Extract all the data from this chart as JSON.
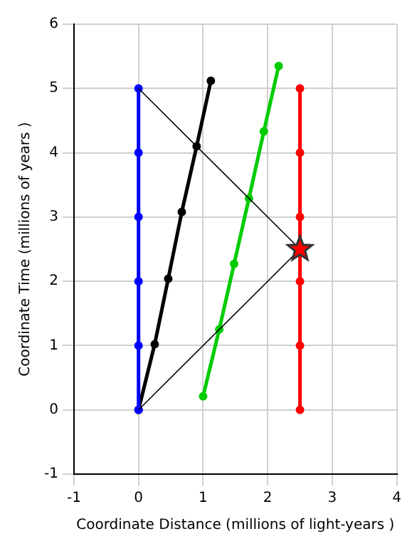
{
  "chart_data": {
    "type": "line",
    "xlabel": "Coordinate Distance (millions of light-years )",
    "ylabel": "Coordinate Time (millions of years )",
    "xlim": [
      -1,
      4
    ],
    "ylim": [
      -1,
      6
    ],
    "xticks": [
      -1,
      0,
      1,
      2,
      3,
      4
    ],
    "yticks": [
      -1,
      0,
      1,
      2,
      3,
      4,
      5,
      6
    ],
    "grid": true,
    "legend": false,
    "marker": "circle",
    "series": [
      {
        "color": "#000000",
        "marker": "none",
        "x": [
          0,
          2.5,
          0
        ],
        "values": [
          5,
          2.5,
          0
        ]
      },
      {
        "color": "#0000ff",
        "x": [
          0,
          0,
          0,
          0,
          0,
          0
        ],
        "values": [
          0,
          1,
          2,
          3,
          4,
          5
        ]
      },
      {
        "color": "#000000",
        "x": [
          0,
          0.25,
          0.46,
          0.67,
          0.9,
          1.12
        ],
        "values": [
          0,
          1.02,
          2.04,
          3.08,
          4.1,
          5.12
        ]
      },
      {
        "color": "#00cc00",
        "x": [
          1.0,
          1.25,
          1.48,
          1.71,
          1.94,
          2.17
        ],
        "values": [
          0.21,
          1.25,
          2.27,
          3.29,
          4.33,
          5.35
        ]
      },
      {
        "color": "#ff0000",
        "x": [
          2.5,
          2.5,
          2.5,
          2.5,
          2.5,
          2.5
        ],
        "values": [
          0,
          1,
          2,
          3,
          4,
          5
        ]
      },
      {
        "type": "scatter",
        "marker": "star",
        "color": "#ff0000",
        "x": [
          2.5
        ],
        "values": [
          2.5
        ]
      }
    ]
  }
}
